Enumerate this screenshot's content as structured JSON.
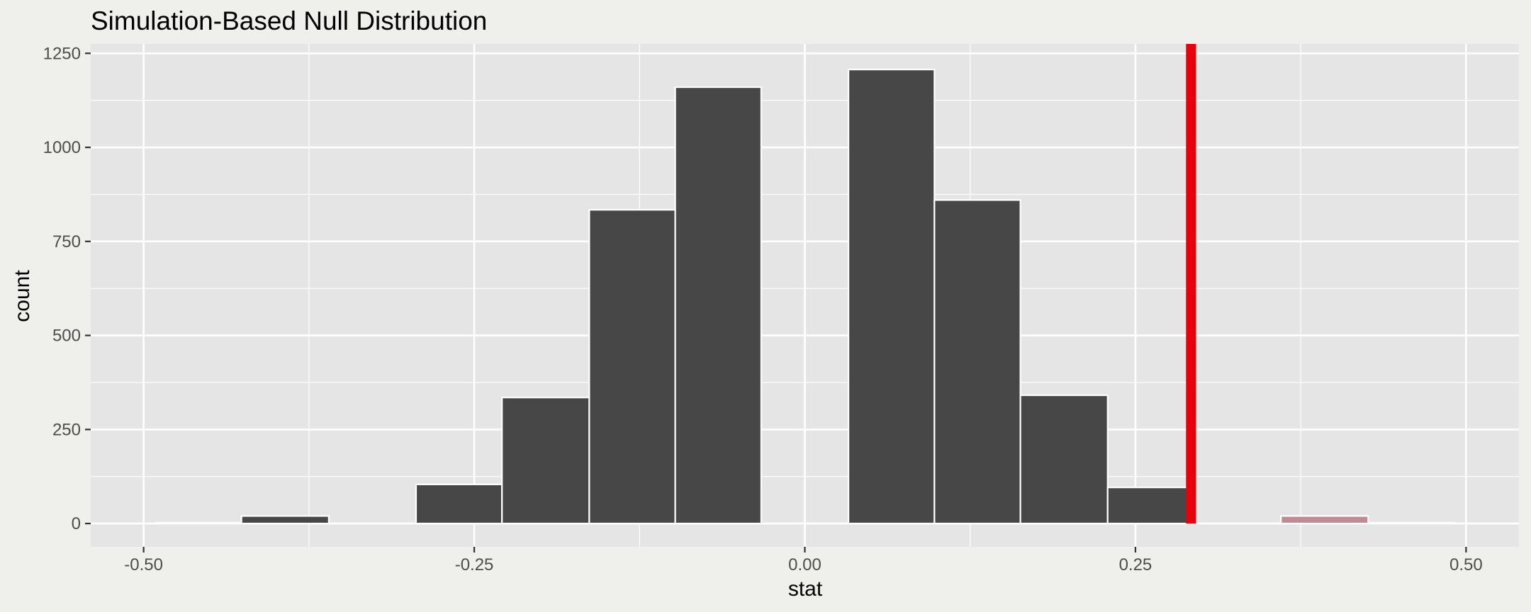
{
  "chart_data": {
    "type": "bar",
    "title": "Simulation-Based Null Distribution",
    "xlabel": "stat",
    "ylabel": "count",
    "xlim": [
      -0.54,
      0.54
    ],
    "ylim": [
      -62,
      1275
    ],
    "x_ticks": [
      -0.5,
      -0.25,
      0.0,
      0.25,
      0.5
    ],
    "x_tick_labels": [
      "-0.50",
      "-0.25",
      "0.00",
      "0.25",
      "0.50"
    ],
    "y_ticks": [
      0,
      250,
      500,
      750,
      1000,
      1250
    ],
    "y_tick_labels": [
      "0",
      "250",
      "500",
      "750",
      "1000",
      "1250"
    ],
    "grid": true,
    "observed_stat": 0.292,
    "bins": [
      {
        "x0": -0.491,
        "x1": -0.426,
        "count": 2,
        "shaded": false
      },
      {
        "x0": -0.426,
        "x1": -0.36,
        "count": 20,
        "shaded": false
      },
      {
        "x0": -0.36,
        "x1": -0.294,
        "count": 0,
        "shaded": false
      },
      {
        "x0": -0.294,
        "x1": -0.229,
        "count": 104,
        "shaded": false
      },
      {
        "x0": -0.229,
        "x1": -0.163,
        "count": 335,
        "shaded": false
      },
      {
        "x0": -0.163,
        "x1": -0.098,
        "count": 834,
        "shaded": false
      },
      {
        "x0": -0.098,
        "x1": -0.033,
        "count": 1160,
        "shaded": false
      },
      {
        "x0": -0.033,
        "x1": 0.033,
        "count": 0,
        "shaded": false
      },
      {
        "x0": 0.033,
        "x1": 0.098,
        "count": 1207,
        "shaded": false
      },
      {
        "x0": 0.098,
        "x1": 0.163,
        "count": 860,
        "shaded": false
      },
      {
        "x0": 0.163,
        "x1": 0.229,
        "count": 341,
        "shaded": false
      },
      {
        "x0": 0.229,
        "x1": 0.292,
        "count": 96,
        "shaded": false
      },
      {
        "x0": 0.292,
        "x1": 0.36,
        "count": 0,
        "shaded": true
      },
      {
        "x0": 0.36,
        "x1": 0.426,
        "count": 20,
        "shaded": true
      },
      {
        "x0": 0.426,
        "x1": 0.491,
        "count": 2,
        "shaded": true
      }
    ],
    "colors": {
      "panel": "#e5e5e5",
      "grid": "#ffffff",
      "bar_fill": "#474747",
      "bar_outline": "#ffffff",
      "shaded_fill": "#c08a92",
      "observed_line": "#e8000b",
      "tick_text": "#4d4d4d"
    }
  }
}
